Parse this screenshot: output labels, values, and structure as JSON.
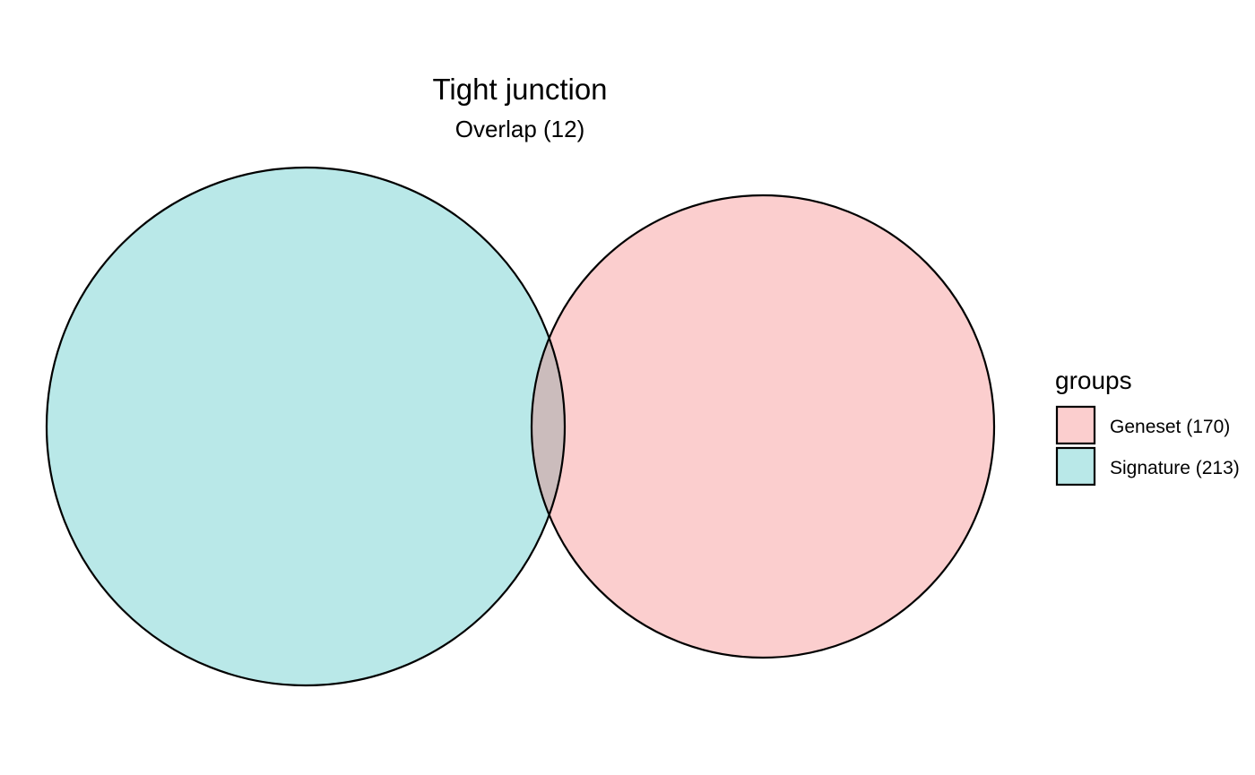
{
  "chart": {
    "title": "Tight junction",
    "subtitle": "Overlap (12)"
  },
  "sets": [
    {
      "key": "signature",
      "fill": "#b9e8e8"
    },
    {
      "key": "geneset",
      "fill": "#fbcece"
    }
  ],
  "overlap_fill": "#cbbcbc",
  "stroke": "#000000",
  "legend": {
    "title": "groups",
    "items": [
      {
        "label": "Geneset (170)",
        "fill": "#fbcece"
      },
      {
        "label": "Signature (213)",
        "fill": "#b9e8e8"
      }
    ]
  }
}
